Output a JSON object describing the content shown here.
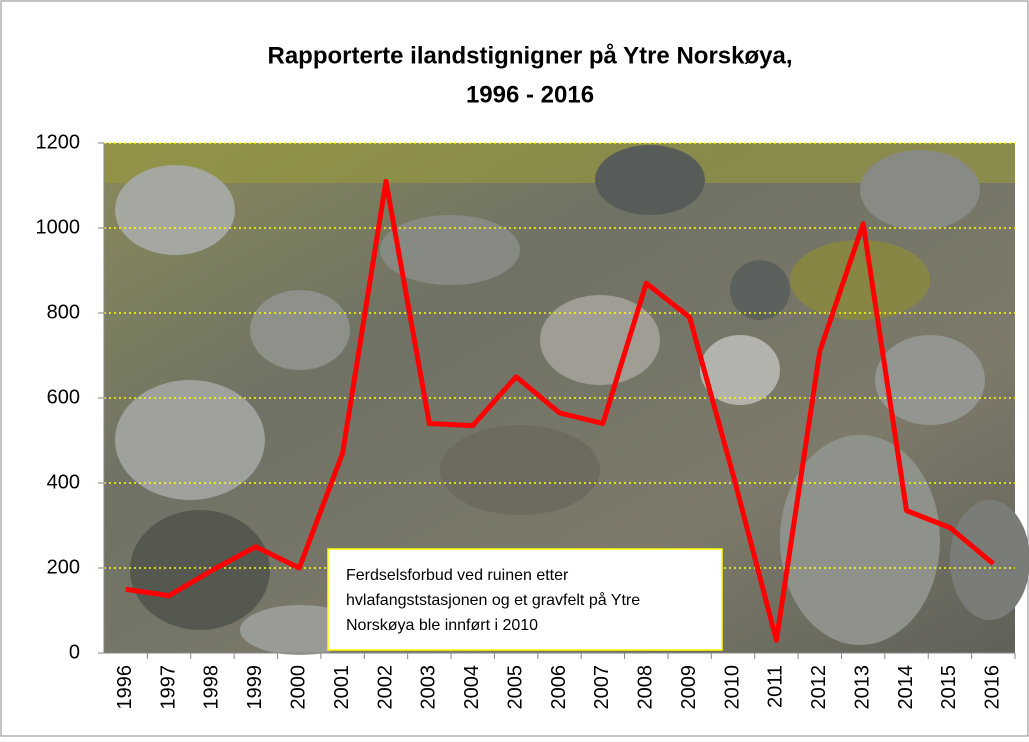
{
  "chart_data": {
    "type": "line",
    "title": [
      "Rapporterte ilandstignigner på Ytre Norskøya,",
      "1996 - 2016"
    ],
    "categories": [
      "1996",
      "1997",
      "1998",
      "1999",
      "2000",
      "2001",
      "2002",
      "2003",
      "2004",
      "2005",
      "2006",
      "2007",
      "2008",
      "2009",
      "2010",
      "2011",
      "2012",
      "2013",
      "2014",
      "2015",
      "2016"
    ],
    "values": [
      150,
      135,
      195,
      250,
      200,
      470,
      1110,
      540,
      535,
      650,
      565,
      540,
      870,
      790,
      420,
      30,
      710,
      1010,
      335,
      295,
      210
    ],
    "color": "#ff0000",
    "ylim": [
      0,
      1200
    ],
    "yticks": [
      0,
      200,
      400,
      600,
      800,
      1000,
      1200
    ],
    "grid": true,
    "annotation": [
      "Ferdselsforbud ved ruinen etter",
      "hvlafangststasjonen og et gravfelt på Ytre",
      "Norskøya ble innført i 2010"
    ]
  }
}
